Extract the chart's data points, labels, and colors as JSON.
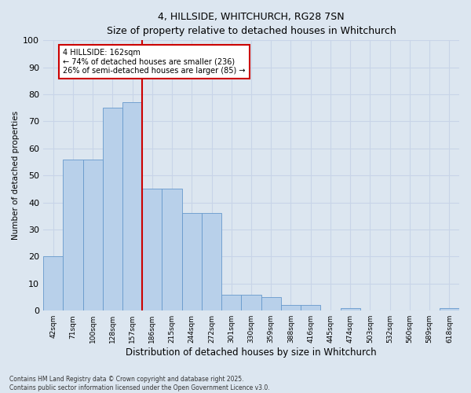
{
  "title1": "4, HILLSIDE, WHITCHURCH, RG28 7SN",
  "title2": "Size of property relative to detached houses in Whitchurch",
  "xlabel": "Distribution of detached houses by size in Whitchurch",
  "ylabel": "Number of detached properties",
  "categories": [
    "42sqm",
    "71sqm",
    "100sqm",
    "128sqm",
    "157sqm",
    "186sqm",
    "215sqm",
    "244sqm",
    "272sqm",
    "301sqm",
    "330sqm",
    "359sqm",
    "388sqm",
    "416sqm",
    "445sqm",
    "474sqm",
    "503sqm",
    "532sqm",
    "560sqm",
    "589sqm",
    "618sqm"
  ],
  "values": [
    20,
    56,
    56,
    75,
    77,
    45,
    45,
    36,
    36,
    6,
    6,
    5,
    2,
    2,
    0,
    1,
    0,
    0,
    0,
    0,
    1
  ],
  "bar_color": "#b8d0ea",
  "bar_edge_color": "#6699cc",
  "marker_label": "4 HILLSIDE: 162sqm",
  "annotation_line1": "← 74% of detached houses are smaller (236)",
  "annotation_line2": "26% of semi-detached houses are larger (85) →",
  "annotation_box_color": "#ffffff",
  "annotation_box_edge": "#cc0000",
  "vline_color": "#cc0000",
  "ylim": [
    0,
    100
  ],
  "yticks": [
    0,
    10,
    20,
    30,
    40,
    50,
    60,
    70,
    80,
    90,
    100
  ],
  "grid_color": "#c8d4e8",
  "bg_color": "#dce6f0",
  "footnote1": "Contains HM Land Registry data © Crown copyright and database right 2025.",
  "footnote2": "Contains public sector information licensed under the Open Government Licence v3.0."
}
